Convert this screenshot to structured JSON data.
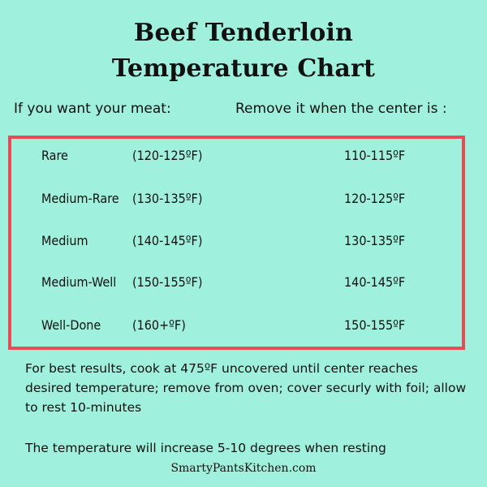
{
  "title": {
    "line1": "Beef Tenderloin",
    "line2": "Temperature Chart"
  },
  "headers": {
    "left": "If you want your meat:",
    "right": "Remove it when the center is :"
  },
  "rows": [
    {
      "doneness": "Rare",
      "range": "(120-125ºF)",
      "remove": "110-115ºF"
    },
    {
      "doneness": "Medium-Rare",
      "range": "(130-135ºF)",
      "remove": "120-125ºF"
    },
    {
      "doneness": "Medium",
      "range": "(140-145ºF)",
      "remove": "130-135ºF"
    },
    {
      "doneness": "Medium-Well",
      "range": "(150-155ºF)",
      "remove": "140-145ºF"
    },
    {
      "doneness": "Well-Done",
      "range": "(160+ºF)",
      "remove": "150-155ºF"
    }
  ],
  "notes": {
    "cooking": "For best results, cook at 475ºF uncovered until center reaches desired temperature; remove from oven; cover securly with foil; allow to rest 10-minutes",
    "resting": "The temperature will increase 5-10 degrees when resting"
  },
  "footer": "SmartyPantsKitchen.com",
  "colors": {
    "background": "#9ff0dc",
    "frame": "#e94a55",
    "text": "#111111"
  }
}
